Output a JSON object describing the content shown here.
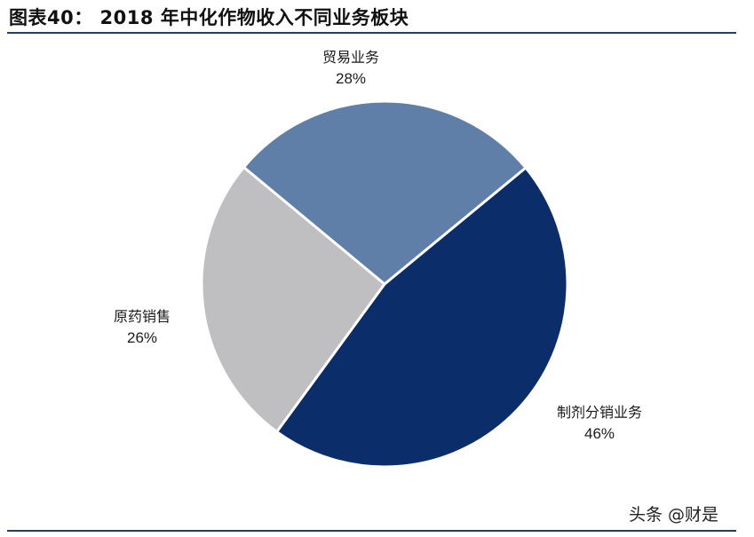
{
  "figure": {
    "title": "图表40： 2018 年中化作物收入不同业务板块"
  },
  "chart_data": {
    "type": "pie",
    "slices": [
      {
        "label": "制剂分销业务",
        "value": 46,
        "value_label": "46%",
        "color": "#0b2e6b"
      },
      {
        "label": "原药销售",
        "value": 26,
        "value_label": "26%",
        "color": "#bfbfc2"
      },
      {
        "label": "贸易业务",
        "value": 28,
        "value_label": "28%",
        "color": "#5f7fa9"
      }
    ],
    "start_angle_deg": 39.5,
    "legend": "none"
  },
  "watermark": "头条 @财是"
}
